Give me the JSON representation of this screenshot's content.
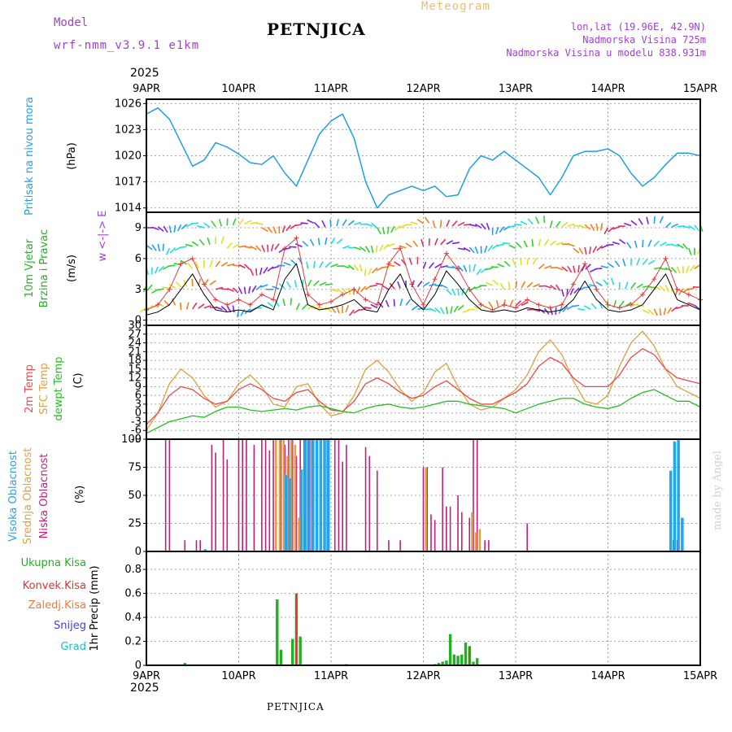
{
  "header": {
    "model_label": "Model",
    "model_name": "wrf-nmm_v3.9.1 e1km",
    "station": "PETNJICA",
    "title": "Meteogram",
    "coords": "lon,lat (19.96E, 42.9N)",
    "elevation": "Nadmorska Visina 725m",
    "model_elevation": "Nadmorska Visina u modelu 838.931m",
    "year": "2025"
  },
  "footer": {
    "station": "PETNJICA",
    "year": "2025",
    "credit": "made by Angel"
  },
  "time_axis": {
    "labels": [
      "9APR",
      "10APR",
      "11APR",
      "12APR",
      "13APR",
      "14APR",
      "15APR"
    ]
  },
  "colors": {
    "pressure": "#1e9ee6",
    "wind_speed": "#000000",
    "wind_gust": "#e03c3c",
    "temp_2m": "#e84a4a",
    "temp_sfc": "#dca040",
    "dewpoint": "#22c022",
    "cloud_high": "#1ea8f0",
    "cloud_mid": "#e0a040",
    "cloud_low": "#c0207a",
    "precip_total": "#22b022",
    "precip_conv": "#e03030",
    "precip_frozen": "#f07830",
    "snow": "#4040e0",
    "grad": "#20c0c0",
    "model_text": "#a040d0",
    "title_text": "#e8c070"
  },
  "chart_data": [
    {
      "type": "line",
      "panel": "pressure",
      "label": "Pritisak na nivou mora",
      "unit": "(hPa)",
      "yticks": [
        "1014",
        "1017",
        "1020",
        "1023",
        "1026"
      ],
      "ylim": [
        1013.5,
        1026.5
      ],
      "grid": true,
      "x": [
        0,
        3,
        6,
        9,
        12,
        15,
        18,
        21,
        24,
        27,
        30,
        33,
        36,
        39,
        42,
        45,
        48,
        51,
        54,
        57,
        60,
        63,
        66,
        69,
        72,
        75,
        78,
        81,
        84,
        87,
        90,
        93,
        96,
        99,
        102,
        105,
        108,
        111,
        114,
        117,
        120,
        123,
        126,
        129,
        132,
        135,
        138,
        141,
        144
      ],
      "series": [
        {
          "values": [
            1024.8,
            1025.5,
            1024.2,
            1021.5,
            1018.8,
            1019.5,
            1021.5,
            1021.0,
            1020.2,
            1019.2,
            1019.0,
            1020.0,
            1018.0,
            1016.5,
            1019.5,
            1022.5,
            1024.0,
            1024.8,
            1022.0,
            1017.0,
            1014.0,
            1015.5,
            1016.0,
            1016.5,
            1016.0,
            1016.5,
            1015.3,
            1015.5,
            1018.5,
            1020.0,
            1019.5,
            1020.5,
            1019.5,
            1018.5,
            1017.5,
            1015.5,
            1017.5,
            1020.0,
            1020.5,
            1020.5,
            1020.8,
            1020.0,
            1018.0,
            1016.5,
            1017.5,
            1019.0,
            1020.3,
            1020.3,
            1020.0
          ]
        }
      ]
    },
    {
      "type": "line",
      "panel": "wind",
      "label": [
        "10m Vjetar",
        "Brzina i Pravac"
      ],
      "unit": "(m/s)",
      "compass": "w <-|-> E",
      "yticks": [
        "0",
        "3",
        "6",
        "9"
      ],
      "ylim": [
        -0.5,
        10.5
      ],
      "grid": true,
      "x": [
        0,
        3,
        6,
        9,
        12,
        15,
        18,
        21,
        24,
        27,
        30,
        33,
        36,
        39,
        42,
        45,
        48,
        51,
        54,
        57,
        60,
        63,
        66,
        69,
        72,
        75,
        78,
        81,
        84,
        87,
        90,
        93,
        96,
        99,
        102,
        105,
        108,
        111,
        114,
        117,
        120,
        123,
        126,
        129,
        132,
        135,
        138,
        141,
        144
      ],
      "series": [
        {
          "name": "speed",
          "values": [
            0.5,
            0.8,
            1.5,
            3.0,
            4.5,
            2.5,
            1.0,
            0.8,
            1.0,
            0.8,
            1.5,
            1.0,
            4.0,
            5.5,
            1.5,
            1.0,
            1.2,
            1.5,
            2.0,
            1.0,
            0.8,
            3.0,
            4.5,
            2.0,
            1.0,
            2.5,
            4.8,
            3.5,
            2.0,
            1.0,
            0.8,
            1.0,
            0.8,
            1.2,
            1.0,
            0.8,
            1.0,
            2.0,
            3.8,
            2.0,
            1.0,
            0.8,
            1.0,
            1.5,
            3.0,
            4.5,
            2.0,
            1.5,
            1.0
          ]
        },
        {
          "name": "gust",
          "values": [
            1.0,
            1.5,
            3.0,
            5.5,
            6.0,
            3.5,
            2.0,
            1.5,
            2.0,
            1.5,
            2.5,
            2.0,
            7.0,
            8.0,
            2.5,
            1.5,
            1.8,
            2.5,
            3.0,
            2.0,
            1.5,
            5.5,
            7.0,
            3.5,
            1.5,
            4.0,
            6.5,
            5.0,
            3.0,
            1.5,
            1.0,
            1.5,
            1.2,
            2.0,
            1.5,
            1.2,
            1.5,
            3.5,
            5.5,
            3.0,
            1.5,
            1.2,
            1.5,
            2.5,
            4.0,
            6.0,
            3.0,
            2.5,
            2.0
          ]
        }
      ]
    },
    {
      "type": "line",
      "panel": "temperature",
      "labels": [
        "2m Temp",
        "SFC Temp",
        "dewpt Temp"
      ],
      "unit": "(C)",
      "yticks": [
        "-9",
        "-6",
        "-3",
        "0",
        "3",
        "6",
        "9",
        "12",
        "15",
        "18",
        "21",
        "24",
        "27",
        "30"
      ],
      "ylim": [
        -9,
        30
      ],
      "grid": true,
      "x": [
        0,
        3,
        6,
        9,
        12,
        15,
        18,
        21,
        24,
        27,
        30,
        33,
        36,
        39,
        42,
        45,
        48,
        51,
        54,
        57,
        60,
        63,
        66,
        69,
        72,
        75,
        78,
        81,
        84,
        87,
        90,
        93,
        96,
        99,
        102,
        105,
        108,
        111,
        114,
        117,
        120,
        123,
        126,
        129,
        132,
        135,
        138,
        141,
        144
      ],
      "series": [
        {
          "name": "2m Temp",
          "values": [
            -4.0,
            0.0,
            6.0,
            9.0,
            8.0,
            5.0,
            3.0,
            4.0,
            8.0,
            10.0,
            8.0,
            5.0,
            4.0,
            7.0,
            8.0,
            4.0,
            1.0,
            0.5,
            4.0,
            10.0,
            12.0,
            10.0,
            7.0,
            5.0,
            6.0,
            9.0,
            11.0,
            8.0,
            5.0,
            3.0,
            3.0,
            5.0,
            7.0,
            10.0,
            16.0,
            19.0,
            17.0,
            12.0,
            9.0,
            9.0,
            9.0,
            13.0,
            19.0,
            22.0,
            20.0,
            15.0,
            12.0,
            11.0,
            10.0
          ]
        },
        {
          "name": "SFC Temp",
          "values": [
            -6.0,
            0.0,
            10.0,
            15.0,
            12.0,
            6.0,
            2.0,
            4.0,
            10.0,
            13.0,
            9.0,
            3.0,
            2.0,
            9.0,
            10.0,
            3.0,
            -1.0,
            0.0,
            6.0,
            15.0,
            18.0,
            14.0,
            8.0,
            4.0,
            7.0,
            14.0,
            17.0,
            9.0,
            3.0,
            1.0,
            2.0,
            5.0,
            8.0,
            13.0,
            21.0,
            25.0,
            20.0,
            11.0,
            4.0,
            3.0,
            6.0,
            16.0,
            24.0,
            28.0,
            23.0,
            15.0,
            9.0,
            7.0,
            5.0
          ]
        },
        {
          "name": "dewpt Temp",
          "values": [
            -7.0,
            -5.0,
            -3.0,
            -2.0,
            -1.0,
            -1.5,
            0.5,
            2.0,
            2.0,
            1.0,
            0.5,
            1.0,
            1.5,
            1.0,
            2.0,
            2.5,
            1.5,
            0.5,
            0.0,
            1.5,
            2.5,
            3.0,
            2.0,
            1.5,
            2.0,
            3.0,
            4.0,
            4.0,
            3.0,
            2.5,
            2.0,
            1.5,
            0.0,
            1.5,
            3.0,
            4.0,
            5.0,
            5.0,
            3.0,
            2.0,
            1.5,
            2.5,
            5.0,
            7.0,
            8.0,
            6.0,
            4.0,
            4.0,
            2.0
          ]
        }
      ]
    },
    {
      "type": "bar",
      "panel": "clouds",
      "labels": [
        "Visoka Oblacnost",
        "Srednja Oblacnost",
        "Niska Oblacnost"
      ],
      "unit": "(%)",
      "yticks": [
        "0",
        "25",
        "50",
        "75",
        "100"
      ],
      "ylim": [
        0,
        100
      ],
      "grid": true,
      "series": [
        {
          "name": "Niska Oblacnost",
          "x": [
            5,
            6,
            10,
            13,
            14,
            17,
            18,
            20,
            21,
            24,
            25,
            26,
            28,
            30,
            31,
            32,
            33,
            35,
            36,
            37,
            38,
            39,
            40,
            41,
            42,
            43,
            47,
            49,
            50,
            51,
            52,
            57,
            58,
            60,
            63,
            66,
            72,
            73,
            74,
            75,
            77,
            78,
            79,
            81,
            82,
            84,
            85,
            86,
            88,
            89,
            99,
            137,
            138
          ],
          "values": [
            100,
            100,
            10,
            10,
            10,
            95,
            88,
            100,
            82,
            100,
            100,
            100,
            95,
            100,
            100,
            90,
            100,
            100,
            95,
            100,
            100,
            85,
            100,
            100,
            100,
            100,
            100,
            100,
            100,
            80,
            95,
            93,
            85,
            72,
            10,
            10,
            75,
            75,
            33,
            28,
            75,
            40,
            40,
            50,
            35,
            30,
            100,
            100,
            10,
            10,
            25,
            10,
            10
          ]
        },
        {
          "name": "Srednja Oblacnost",
          "x": [
            34,
            35,
            36,
            37,
            38,
            39,
            40,
            73,
            85,
            86,
            87
          ],
          "values": [
            100,
            100,
            100,
            85,
            100,
            95,
            30,
            75,
            35,
            17,
            20
          ]
        },
        {
          "name": "Visoka Oblacnost",
          "x": [
            15,
            36,
            37,
            40,
            41,
            42,
            43,
            44,
            45,
            46,
            47,
            136,
            137,
            138,
            139
          ],
          "values": [
            2,
            68,
            65,
            73,
            100,
            100,
            100,
            100,
            100,
            100,
            100,
            72,
            98,
            100,
            30
          ]
        }
      ]
    },
    {
      "type": "bar",
      "panel": "precipitation",
      "labels": [
        "Ukupna Kisa",
        "Konvek.Kisa",
        "Zaledj.Kisa",
        "Snijeg",
        "Grad"
      ],
      "unit": "1hr Precip (mm)",
      "yticks": [
        "0",
        "0.2",
        "0.4",
        "0.6",
        "0.8"
      ],
      "ylim": [
        0,
        0.95
      ],
      "grid": true,
      "series": [
        {
          "name": "Ukupna Kisa",
          "x": [
            10,
            34,
            35,
            38,
            39,
            40,
            52,
            75,
            76,
            77,
            78,
            79,
            80,
            81,
            82,
            83,
            84,
            85,
            86
          ],
          "values": [
            0.02,
            0.55,
            0.13,
            0.22,
            0.6,
            0.24,
            0.01,
            0.01,
            0.02,
            0.03,
            0.04,
            0.26,
            0.09,
            0.08,
            0.09,
            0.19,
            0.16,
            0.03,
            0.06
          ]
        },
        {
          "name": "Konvek.Kisa",
          "x": [
            39,
            84
          ],
          "values": [
            0.6,
            0.16
          ]
        }
      ]
    }
  ]
}
